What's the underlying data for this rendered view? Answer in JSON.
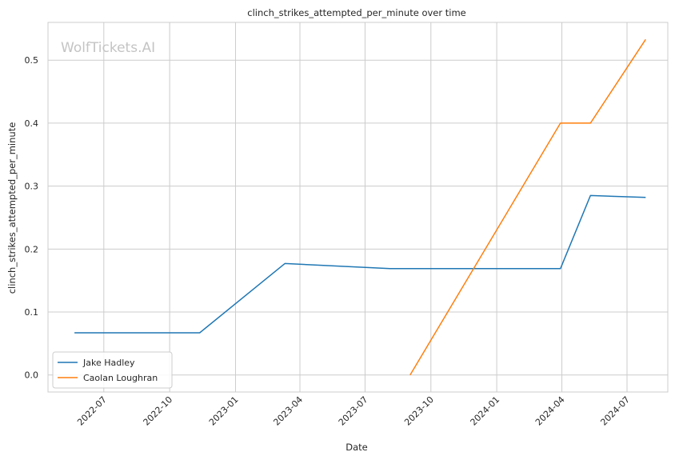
{
  "chart_data": {
    "type": "line",
    "title": "clinch_strikes_attempted_per_minute over time",
    "xlabel": "Date",
    "ylabel": "clinch_strikes_attempted_per_minute",
    "watermark": "WolfTickets.AI",
    "xlim": [
      "2022-04-14",
      "2024-08-27"
    ],
    "ylim": [
      -0.027,
      0.56
    ],
    "x_ticks": [
      "2022-07",
      "2022-10",
      "2023-01",
      "2023-04",
      "2023-07",
      "2023-10",
      "2024-01",
      "2024-04",
      "2024-07"
    ],
    "y_ticks": [
      0.0,
      0.1,
      0.2,
      0.3,
      0.4,
      0.5
    ],
    "grid": true,
    "legend_position": "lower-left",
    "series": [
      {
        "name": "Jake Hadley",
        "color": "#1f77b4",
        "points": [
          {
            "x": "2022-05-21",
            "y": 0.067
          },
          {
            "x": "2022-11-12",
            "y": 0.067
          },
          {
            "x": "2023-03-11",
            "y": 0.177
          },
          {
            "x": "2023-08-05",
            "y": 0.169
          },
          {
            "x": "2024-03-30",
            "y": 0.169
          },
          {
            "x": "2024-05-11",
            "y": 0.285
          },
          {
            "x": "2024-07-27",
            "y": 0.282
          }
        ]
      },
      {
        "name": "Caolan Loughran",
        "color": "#ff7f0e",
        "points": [
          {
            "x": "2023-09-02",
            "y": 0.0
          },
          {
            "x": "2024-03-30",
            "y": 0.4
          },
          {
            "x": "2024-05-11",
            "y": 0.4
          },
          {
            "x": "2024-07-27",
            "y": 0.533
          }
        ]
      }
    ]
  }
}
